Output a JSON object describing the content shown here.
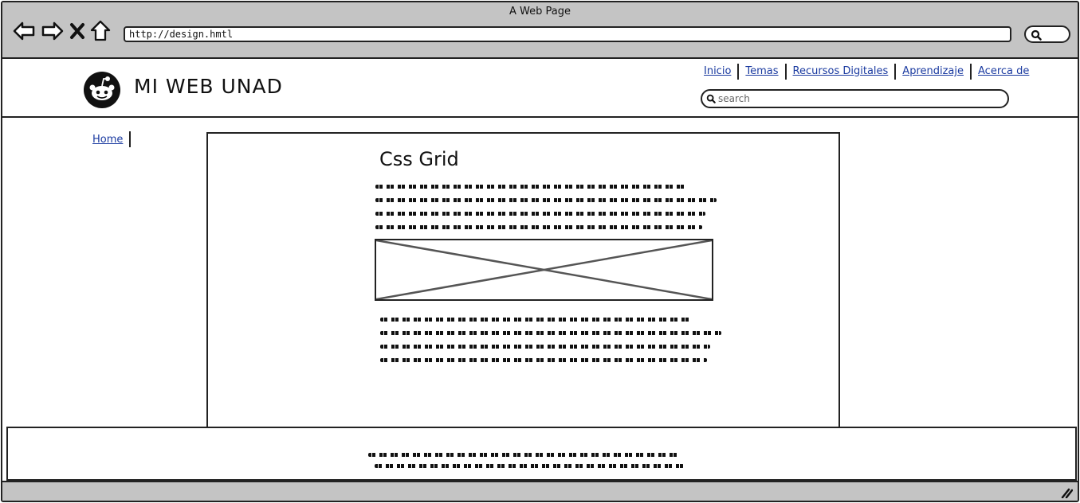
{
  "browser": {
    "window_title": "A Web Page",
    "url": "http://design.hmtl",
    "icons": [
      "back-arrow-icon",
      "forward-arrow-icon",
      "close-icon",
      "home-icon",
      "search-icon"
    ]
  },
  "header": {
    "site_title": "MI WEB UNAD",
    "logo": "reddit-alien-logo",
    "nav": [
      {
        "label": "Inicio"
      },
      {
        "label": "Temas"
      },
      {
        "label": "Recursos Digitales"
      },
      {
        "label": "Aprendizaje"
      },
      {
        "label": "Acerca de"
      }
    ],
    "search_placeholder": "search"
  },
  "breadcrumb": {
    "home_label": "Home"
  },
  "main": {
    "title": "Css Grid",
    "image_placeholder": "image-placeholder"
  },
  "colors": {
    "chrome": "#c4c4c4",
    "link": "#1a3aa0",
    "border": "#222222"
  }
}
